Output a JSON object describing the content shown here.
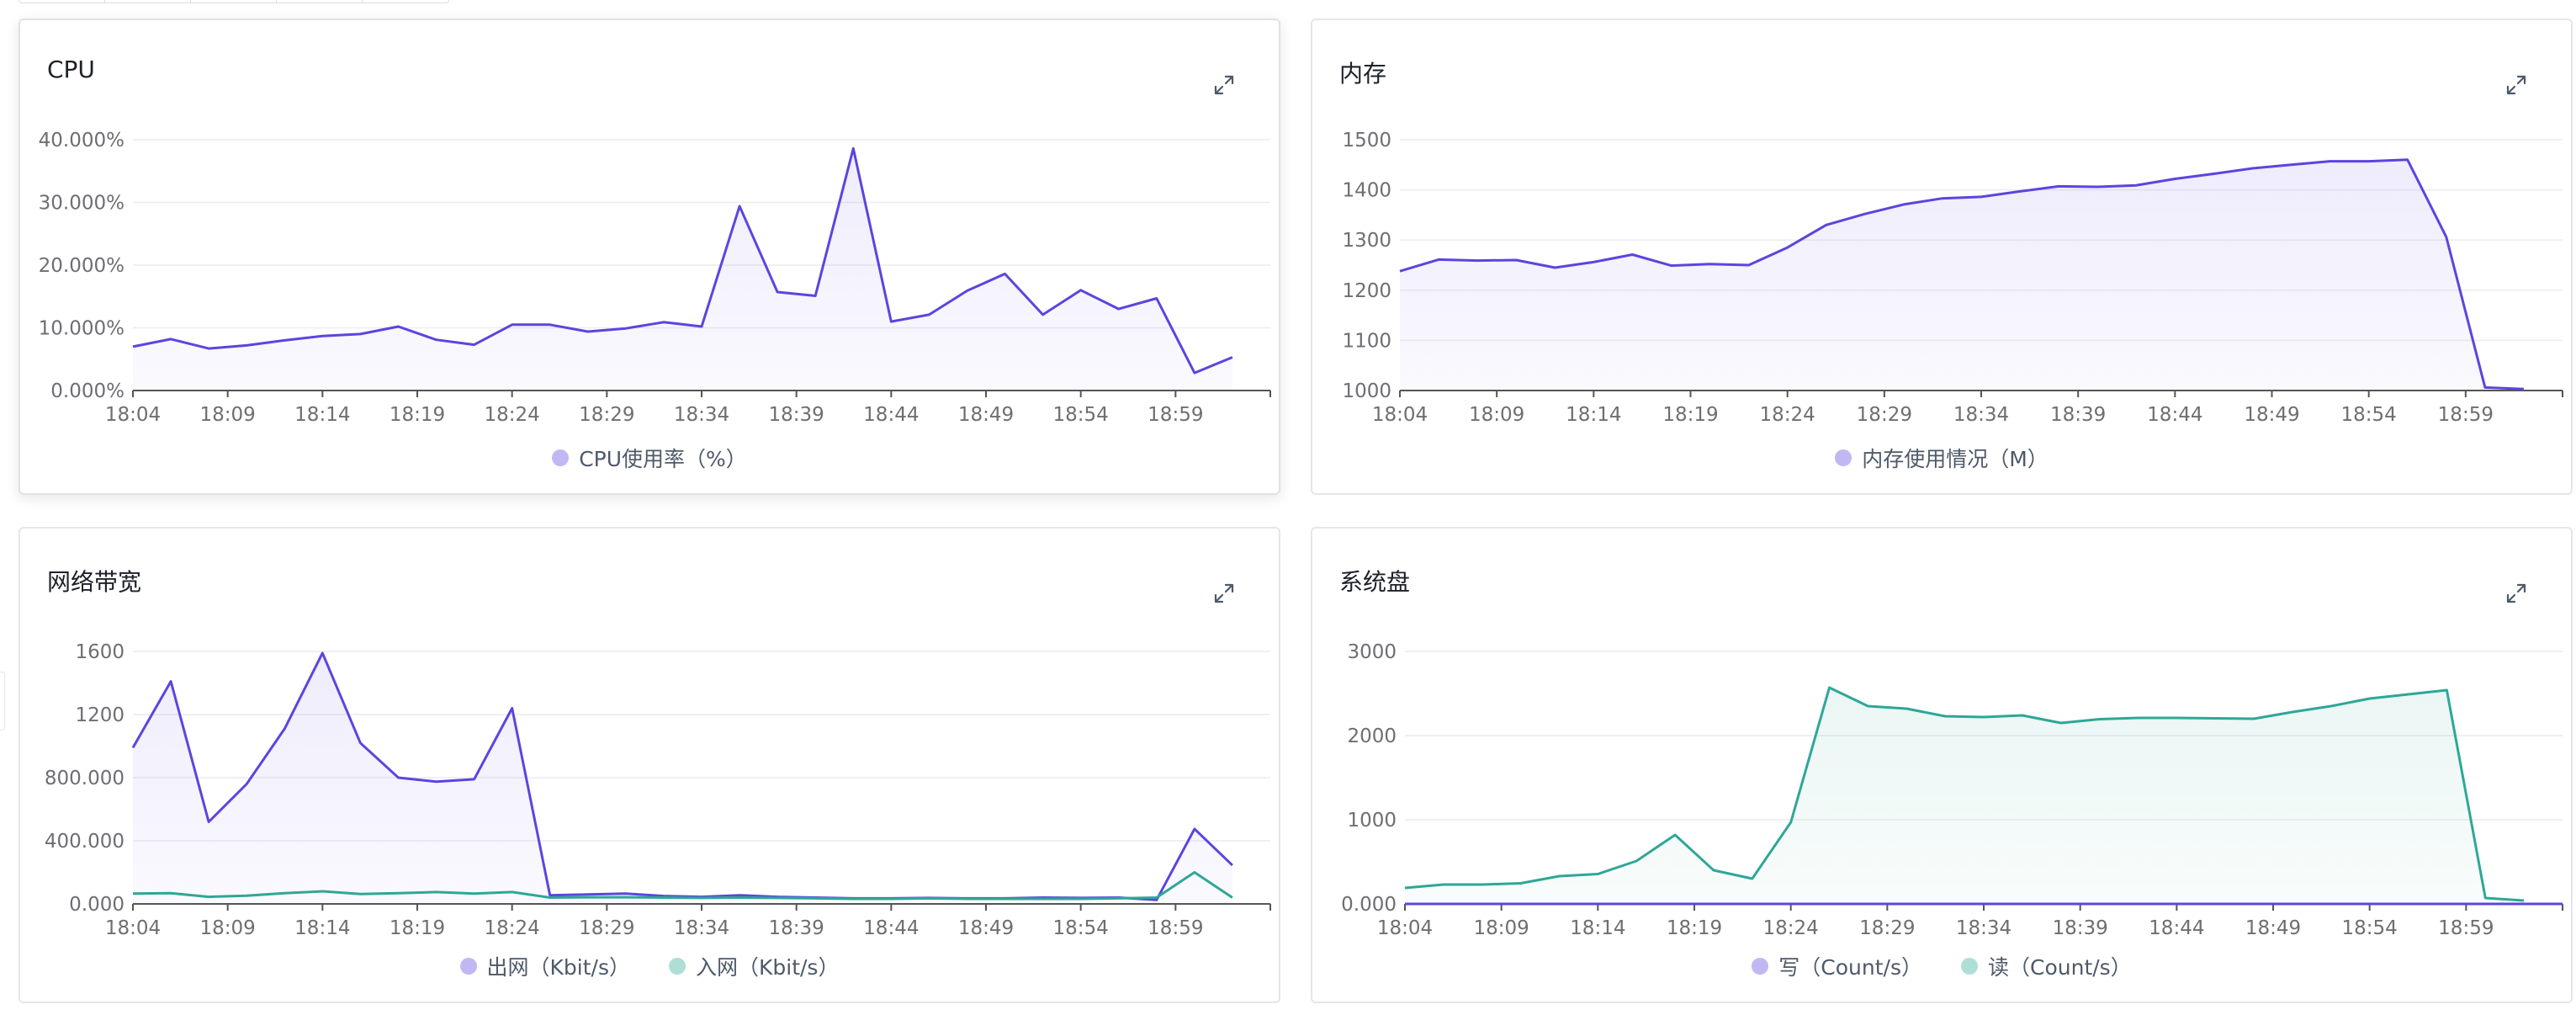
{
  "colors": {
    "purple": "#5b45df",
    "teal": "#2ea797",
    "grid": "#ececef",
    "axis": "#555555",
    "tick": "#6e6e73"
  },
  "icons": {
    "expand": "expand-icon"
  },
  "chart_data": [
    {
      "id": "cpu",
      "type": "area",
      "title": "CPU",
      "ylim": [
        0,
        40
      ],
      "yticks": [
        0,
        10,
        20,
        30,
        40
      ],
      "ytick_labels": [
        "0.000%",
        "10.000%",
        "20.000%",
        "30.000%",
        "40.000%"
      ],
      "xticks": [
        "18:04",
        "18:09",
        "18:14",
        "18:19",
        "18:24",
        "18:29",
        "18:34",
        "18:39",
        "18:44",
        "18:49",
        "18:54",
        "18:59"
      ],
      "x_start": 0,
      "x_end": 60,
      "grid": true,
      "legend": "bottom-center",
      "series": [
        {
          "name": "CPU使用率（%）",
          "color": "#5b45df",
          "fill": true,
          "x": [
            0,
            2,
            4,
            6,
            8,
            10,
            12,
            14,
            16,
            18,
            20,
            22,
            24,
            26,
            28,
            30,
            32,
            34,
            36,
            38,
            40,
            42,
            44,
            46,
            48,
            50,
            52,
            54,
            56,
            58,
            60
          ],
          "values": [
            7,
            8.2,
            6.7,
            7.2,
            8,
            8.7,
            9,
            10.2,
            8.1,
            7.3,
            10.5,
            10.5,
            9.4,
            9.9,
            10.9,
            10.2,
            29.4,
            15.7,
            15.1,
            38.6,
            11,
            12.1,
            15.9,
            18.6,
            12.1,
            16,
            13,
            14.7,
            2.8,
            5.3,
            null
          ]
        }
      ]
    },
    {
      "id": "memory",
      "type": "area",
      "title": "内存",
      "ylim": [
        1000,
        1500
      ],
      "yticks": [
        1000,
        1100,
        1200,
        1300,
        1400,
        1500
      ],
      "ytick_labels": [
        "1000",
        "1100",
        "1200",
        "1300",
        "1400",
        "1500"
      ],
      "xticks": [
        "18:04",
        "18:09",
        "18:14",
        "18:19",
        "18:24",
        "18:29",
        "18:34",
        "18:39",
        "18:44",
        "18:49",
        "18:54",
        "18:59"
      ],
      "x_start": 0,
      "x_end": 60,
      "grid": true,
      "legend": "bottom-center",
      "series": [
        {
          "name": "内存使用情况（M）",
          "color": "#5b45df",
          "fill": true,
          "x": [
            0,
            2,
            4,
            6,
            8,
            10,
            12,
            14,
            16,
            18,
            20,
            22,
            24,
            26,
            28,
            30,
            32,
            34,
            36,
            38,
            40,
            42,
            44,
            46,
            48,
            50,
            52,
            54,
            56,
            58,
            60
          ],
          "values": [
            1238,
            1261,
            1259,
            1260,
            1245,
            1256,
            1271,
            1249,
            1252,
            1250,
            1285,
            1330,
            1352,
            1371,
            1383,
            1386,
            1397,
            1407,
            1406,
            1409,
            1422,
            1432,
            1443,
            1450,
            1457,
            1457,
            1460,
            1306,
            1006,
            1003,
            null
          ]
        }
      ]
    },
    {
      "id": "network",
      "type": "area",
      "title": "网络带宽",
      "ylim": [
        0,
        1600
      ],
      "yticks": [
        0,
        400,
        800,
        1200,
        1600
      ],
      "ytick_labels": [
        "0.000",
        "400.000",
        "800.000",
        "1200",
        "1600"
      ],
      "xticks": [
        "18:04",
        "18:09",
        "18:14",
        "18:19",
        "18:24",
        "18:29",
        "18:34",
        "18:39",
        "18:44",
        "18:49",
        "18:54",
        "18:59"
      ],
      "x_start": 0,
      "x_end": 60,
      "grid": true,
      "legend": "bottom-center",
      "series": [
        {
          "name": "出网（Kbit/s）",
          "color": "#5b45df",
          "fill": true,
          "x": [
            0,
            2,
            4,
            6,
            8,
            10,
            12,
            14,
            16,
            18,
            20,
            22,
            24,
            26,
            28,
            30,
            32,
            34,
            36,
            38,
            40,
            42,
            44,
            46,
            48,
            50,
            52,
            54,
            56,
            58,
            60
          ],
          "values": [
            990,
            1410,
            520,
            760,
            1110,
            1590,
            1020,
            800,
            775,
            790,
            1240,
            55,
            60,
            65,
            50,
            45,
            55,
            45,
            40,
            35,
            35,
            38,
            35,
            35,
            40,
            38,
            40,
            25,
            475,
            245,
            null
          ]
        },
        {
          "name": "入网（Kbit/s）",
          "color": "#2ea797",
          "fill": false,
          "x": [
            0,
            2,
            4,
            6,
            8,
            10,
            12,
            14,
            16,
            18,
            20,
            22,
            24,
            26,
            28,
            30,
            32,
            34,
            36,
            38,
            40,
            42,
            44,
            46,
            48,
            50,
            52,
            54,
            56,
            58,
            60
          ],
          "values": [
            65,
            68,
            45,
            52,
            68,
            80,
            63,
            68,
            75,
            65,
            75,
            40,
            42,
            42,
            40,
            38,
            40,
            38,
            35,
            32,
            32,
            35,
            32,
            32,
            32,
            32,
            35,
            40,
            200,
            40,
            null
          ]
        }
      ]
    },
    {
      "id": "disk",
      "type": "area",
      "title": "系统盘",
      "ylim": [
        0,
        3000
      ],
      "yticks": [
        0,
        1000,
        2000,
        3000
      ],
      "ytick_labels": [
        "0.000",
        "1000",
        "2000",
        "3000"
      ],
      "xticks": [
        "18:04",
        "18:09",
        "18:14",
        "18:19",
        "18:24",
        "18:29",
        "18:34",
        "18:39",
        "18:44",
        "18:49",
        "18:54",
        "18:59"
      ],
      "x_start": 0,
      "x_end": 60,
      "grid": true,
      "legend": "bottom-center",
      "series": [
        {
          "name": "写（Count/s）",
          "color": "#5b45df",
          "fill": false,
          "x": [
            0,
            60
          ],
          "values": [
            0,
            0
          ]
        },
        {
          "name": "读（Count/s）",
          "color": "#2ea797",
          "fill": true,
          "x": [
            0,
            2,
            4,
            6,
            8,
            10,
            12,
            14,
            16,
            18,
            20,
            22,
            24,
            26,
            28,
            30,
            32,
            34,
            36,
            38,
            40,
            42,
            44,
            46,
            48,
            50,
            52,
            54,
            56,
            58,
            60
          ],
          "values": [
            190,
            230,
            230,
            245,
            330,
            355,
            510,
            820,
            400,
            300,
            970,
            2570,
            2350,
            2320,
            2230,
            2220,
            2240,
            2150,
            2195,
            2210,
            2210,
            2205,
            2200,
            2280,
            2350,
            2440,
            2490,
            2540,
            70,
            40,
            null
          ]
        }
      ]
    }
  ]
}
